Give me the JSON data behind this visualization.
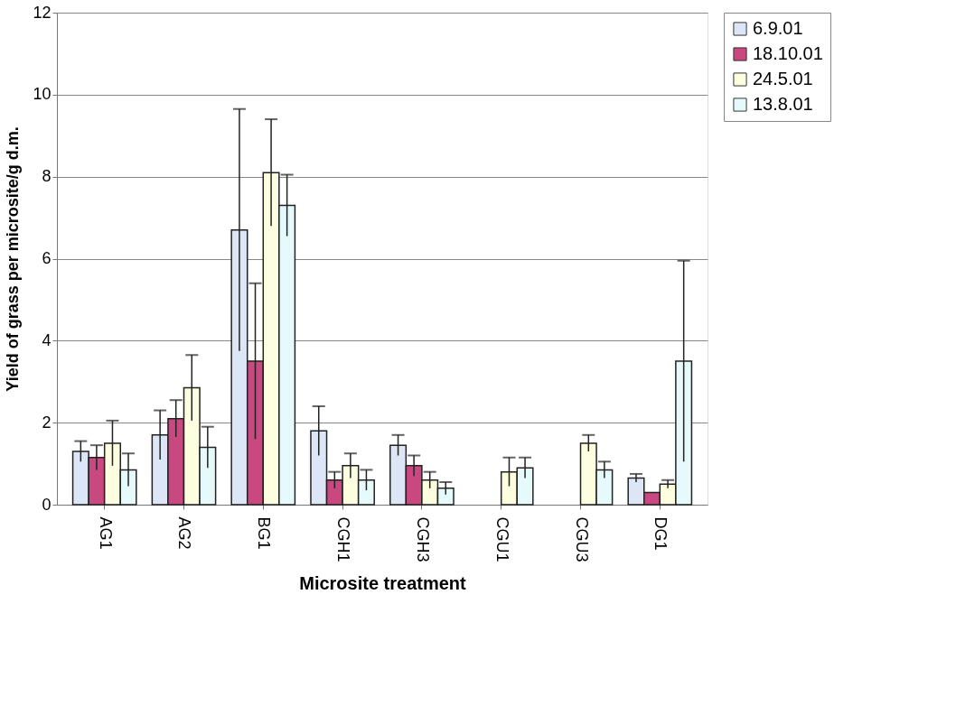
{
  "chart_data": {
    "type": "bar",
    "xlabel": "Microsite treatment",
    "ylabel": "Yield of grass per microsite/g d.m.",
    "categories": [
      "AG1",
      "AG2",
      "BG1",
      "CGH1",
      "CGH3",
      "CGU1",
      "CGU3",
      "DG1"
    ],
    "series": [
      {
        "name": "6.9.01",
        "color": "#dde6f7",
        "values": [
          1.3,
          1.7,
          6.7,
          1.8,
          1.45,
          null,
          null,
          0.65
        ],
        "errors": [
          0.25,
          0.6,
          2.95,
          0.6,
          0.25,
          null,
          null,
          0.1
        ]
      },
      {
        "name": "18.10.01",
        "color": "#c8487f",
        "values": [
          1.15,
          2.1,
          3.5,
          0.6,
          0.95,
          null,
          null,
          0.3
        ],
        "errors": [
          0.3,
          0.45,
          1.9,
          0.2,
          0.25,
          null,
          null,
          null
        ]
      },
      {
        "name": "24.5.01",
        "color": "#fdfde0",
        "values": [
          1.5,
          2.85,
          8.1,
          0.95,
          0.6,
          0.8,
          1.5,
          0.5
        ],
        "errors": [
          0.55,
          0.8,
          1.3,
          0.3,
          0.2,
          0.35,
          0.2,
          0.1
        ]
      },
      {
        "name": "13.8.01",
        "color": "#e6fafc",
        "values": [
          0.85,
          1.4,
          7.3,
          0.6,
          0.4,
          0.9,
          0.85,
          3.5
        ],
        "errors": [
          0.4,
          0.5,
          0.75,
          0.25,
          0.15,
          0.25,
          0.2,
          2.45
        ]
      }
    ],
    "ylim": [
      0,
      12
    ],
    "yticks": [
      0,
      2,
      4,
      6,
      8,
      10,
      12
    ],
    "grid": "y",
    "legend": "right"
  }
}
